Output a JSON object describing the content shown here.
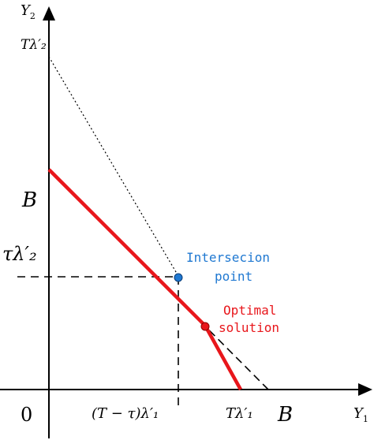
{
  "diagram": {
    "labels": {
      "y_axis": "Y",
      "y_axis_sub": "2",
      "x_axis": "Y",
      "x_axis_sub": "1",
      "origin": "0",
      "y_intercept_top": "Tλ′₂",
      "y_intercept_B": "B",
      "y_tau": "τλ′₂",
      "x_T_minus_tau": "(T − τ)λ′₁",
      "x_T_lambda1": "Tλ′₁",
      "x_intercept_B": "B",
      "intersection_label_line1": "Intersecion",
      "intersection_label_line2": "point",
      "optimal_label_line1": "Optimal",
      "optimal_label_line2": "solution"
    },
    "colors": {
      "axis": "#000000",
      "feasible_boundary": "#e8161b",
      "budget_line": "#000000",
      "intersection_point": "#1f78d1",
      "intersection_text": "#1f78d1",
      "optimal_point": "#e8161b",
      "optimal_text": "#e8161b"
    }
  }
}
